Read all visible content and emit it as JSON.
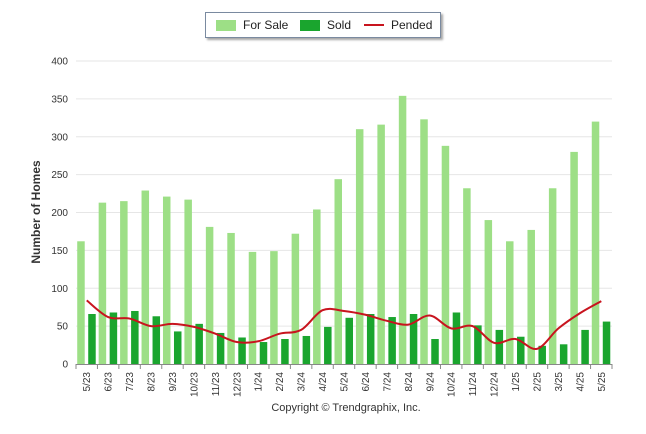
{
  "chart_data": {
    "type": "bar",
    "ylabel": "Number of Homes",
    "xlabel": "",
    "ylim": [
      0,
      400
    ],
    "yticks": [
      0,
      50,
      100,
      150,
      200,
      250,
      300,
      350,
      400
    ],
    "grid": true,
    "legend_position": "top-center",
    "categories": [
      "5/23",
      "6/23",
      "7/23",
      "8/23",
      "9/23",
      "10/23",
      "11/23",
      "12/23",
      "1/24",
      "2/24",
      "3/24",
      "4/24",
      "5/24",
      "6/24",
      "7/24",
      "8/24",
      "9/24",
      "10/24",
      "11/24",
      "12/24",
      "1/25",
      "2/25",
      "3/25",
      "4/25",
      "5/25"
    ],
    "series": [
      {
        "name": "For Sale",
        "kind": "bar",
        "color": "#9ddf86",
        "values": [
          162,
          213,
          215,
          229,
          221,
          217,
          181,
          173,
          148,
          149,
          172,
          204,
          244,
          310,
          316,
          354,
          323,
          288,
          232,
          190,
          162,
          177,
          232,
          280,
          320
        ]
      },
      {
        "name": "Sold",
        "kind": "bar",
        "color": "#1aa52e",
        "values": [
          66,
          68,
          70,
          63,
          43,
          53,
          41,
          35,
          29,
          33,
          37,
          49,
          61,
          66,
          62,
          66,
          33,
          68,
          51,
          45,
          36,
          24,
          26,
          45,
          56
        ]
      },
      {
        "name": "Pended",
        "kind": "line",
        "color": "#c8141e",
        "values": [
          84,
          62,
          60,
          50,
          53,
          49,
          40,
          29,
          30,
          40,
          45,
          71,
          70,
          65,
          57,
          52,
          64,
          47,
          50,
          28,
          33,
          20,
          47,
          67,
          83
        ]
      }
    ]
  },
  "copyright": "Copyright © Trendgraphix, Inc."
}
